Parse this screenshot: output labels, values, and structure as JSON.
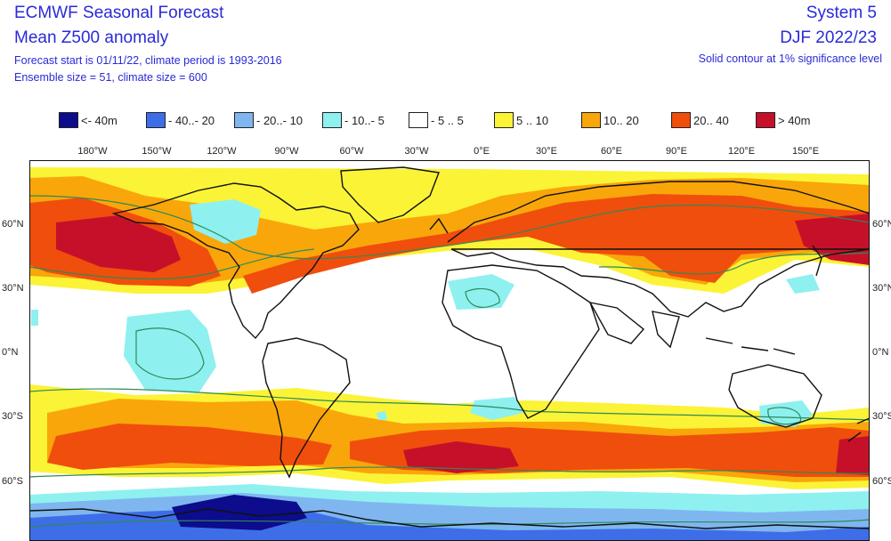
{
  "header": {
    "title_line1": "ECMWF Seasonal Forecast",
    "title_line2": "Mean Z500 anomaly",
    "info_line1": "Forecast start is 01/11/22, climate period is 1993-2016",
    "info_line2": "Ensemble size = 51, climate size = 600",
    "system": "System 5",
    "season": "DJF 2022/23",
    "contour_note": "Solid contour at 1% significance level"
  },
  "legend": [
    {
      "label": "<- 40m",
      "color": "#0c0c8c"
    },
    {
      "label": "- 40..- 20",
      "color": "#3d6ee8"
    },
    {
      "label": "- 20..- 10",
      "color": "#7fb6f0"
    },
    {
      "label": "- 10..- 5",
      "color": "#8ff0f0"
    },
    {
      "label": "- 5 .. 5",
      "color": "#ffffff"
    },
    {
      "label": "5 .. 10",
      "color": "#fbf336"
    },
    {
      "label": "10.. 20",
      "color": "#f9a60b"
    },
    {
      "label": "20.. 40",
      "color": "#f04e0c"
    },
    {
      "label": "> 40m",
      "color": "#c6102a"
    }
  ],
  "lon_labels": [
    "180°W",
    "150°W",
    "120°W",
    "90°W",
    "60°W",
    "30°W",
    "0°E",
    "30°E",
    "60°E",
    "90°E",
    "120°E",
    "150°E"
  ],
  "lat_labels": [
    "60°N",
    "30°N",
    "0°N",
    "30°S",
    "60°S"
  ],
  "map": {
    "icons": [
      "coastline-icon"
    ]
  }
}
